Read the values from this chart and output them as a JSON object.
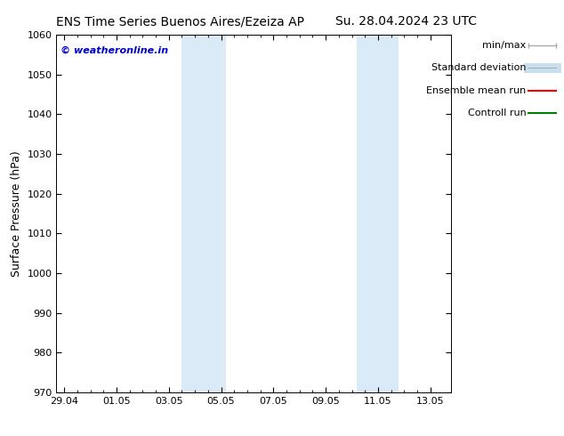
{
  "title_left": "ENS Time Series Buenos Aires/Ezeiza AP",
  "title_right": "Su. 28.04.2024 23 UTC",
  "ylabel": "Surface Pressure (hPa)",
  "ylim": [
    970,
    1060
  ],
  "yticks": [
    970,
    980,
    990,
    1000,
    1010,
    1020,
    1030,
    1040,
    1050,
    1060
  ],
  "xlabel_ticks": [
    "29.04",
    "01.05",
    "03.05",
    "05.05",
    "07.05",
    "09.05",
    "11.05",
    "13.05"
  ],
  "x_tick_positions": [
    0,
    2,
    4,
    6,
    8,
    10,
    12,
    14
  ],
  "xlim": [
    -0.3,
    14.8
  ],
  "shaded_bands": [
    {
      "x_start": 4.5,
      "x_end": 6.2
    },
    {
      "x_start": 11.2,
      "x_end": 12.8
    }
  ],
  "shaded_color": "#daeaf7",
  "background_color": "#ffffff",
  "watermark_text": "© weatheronline.in",
  "watermark_color": "#0000cc",
  "legend_entries": [
    {
      "label": "min/max",
      "color": "#aaaaaa",
      "lw": 1.5
    },
    {
      "label": "Standard deviation",
      "color": "#c8dff0",
      "lw": 8
    },
    {
      "label": "Ensemble mean run",
      "color": "#ff0000",
      "lw": 1.5
    },
    {
      "label": "Controll run",
      "color": "#008000",
      "lw": 1.5
    }
  ],
  "title_fontsize": 10,
  "tick_fontsize": 8,
  "ylabel_fontsize": 9,
  "legend_fontsize": 8
}
